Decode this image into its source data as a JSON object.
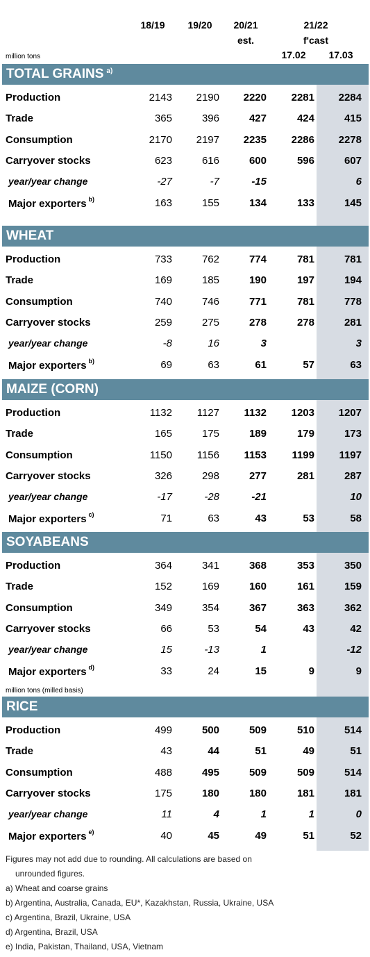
{
  "header": {
    "col1": "18/19",
    "col2": "19/20",
    "col3": "20/21",
    "col3_sub": "est.",
    "col45": "21/22",
    "col45_sub": "f'cast",
    "col4": "17.02",
    "col5": "17.03"
  },
  "unit_label": "million tons",
  "unit_label_rice": "million tons (milled basis)",
  "sections": [
    {
      "title": "TOTAL GRAINS",
      "note": "a)",
      "rows": [
        {
          "label": "Production",
          "v": [
            "2143",
            "2190",
            "2220",
            "2281",
            "2284"
          ]
        },
        {
          "label": "Trade",
          "v": [
            "365",
            "396",
            "427",
            "424",
            "415"
          ]
        },
        {
          "label": "Consumption",
          "v": [
            "2170",
            "2197",
            "2235",
            "2286",
            "2278"
          ]
        },
        {
          "label": "Carryover stocks",
          "v": [
            "623",
            "616",
            "600",
            "596",
            "607"
          ]
        },
        {
          "label": "year/year change",
          "v": [
            "-27",
            "-7",
            "-15",
            "",
            "6"
          ]
        },
        {
          "label": "Major exporters",
          "note": "b)",
          "v": [
            "163",
            "155",
            "134",
            "133",
            "145"
          ]
        }
      ]
    },
    {
      "title": "WHEAT",
      "note": "",
      "rows": [
        {
          "label": "Production",
          "v": [
            "733",
            "762",
            "774",
            "781",
            "781"
          ]
        },
        {
          "label": "Trade",
          "v": [
            "169",
            "185",
            "190",
            "197",
            "194"
          ]
        },
        {
          "label": "Consumption",
          "v": [
            "740",
            "746",
            "771",
            "781",
            "778"
          ]
        },
        {
          "label": "Carryover stocks",
          "v": [
            "259",
            "275",
            "278",
            "278",
            "281"
          ]
        },
        {
          "label": "year/year change",
          "v": [
            "-8",
            "16",
            "3",
            "",
            "3"
          ]
        },
        {
          "label": "Major exporters",
          "note": "b)",
          "v": [
            "69",
            "63",
            "61",
            "57",
            "63"
          ]
        }
      ]
    },
    {
      "title": "MAIZE (CORN)",
      "note": "",
      "rows": [
        {
          "label": "Production",
          "v": [
            "1132",
            "1127",
            "1132",
            "1203",
            "1207"
          ]
        },
        {
          "label": "Trade",
          "v": [
            "165",
            "175",
            "189",
            "179",
            "173"
          ]
        },
        {
          "label": "Consumption",
          "v": [
            "1150",
            "1156",
            "1153",
            "1199",
            "1197"
          ]
        },
        {
          "label": "Carryover stocks",
          "v": [
            "326",
            "298",
            "277",
            "281",
            "287"
          ]
        },
        {
          "label": "year/year change",
          "v": [
            "-17",
            "-28",
            "-21",
            "",
            "10"
          ]
        },
        {
          "label": "Major exporters",
          "note": "c)",
          "v": [
            "71",
            "63",
            "43",
            "53",
            "58"
          ]
        }
      ]
    },
    {
      "title": "SOYABEANS",
      "note": "",
      "rows": [
        {
          "label": "Production",
          "v": [
            "364",
            "341",
            "368",
            "353",
            "350"
          ]
        },
        {
          "label": "Trade",
          "v": [
            "152",
            "169",
            "160",
            "161",
            "159"
          ]
        },
        {
          "label": "Consumption",
          "v": [
            "349",
            "354",
            "367",
            "363",
            "362"
          ]
        },
        {
          "label": "Carryover stocks",
          "v": [
            "66",
            "53",
            "54",
            "43",
            "42"
          ]
        },
        {
          "label": "year/year change",
          "v": [
            "15",
            "-13",
            "1",
            "",
            "-12"
          ]
        },
        {
          "label": "Major exporters",
          "note": "d)",
          "v": [
            "33",
            "24",
            "15",
            "9",
            "9"
          ]
        }
      ]
    },
    {
      "title": "RICE",
      "note": "",
      "rows": [
        {
          "label": "Production",
          "v": [
            "499",
            "500",
            "509",
            "510",
            "514"
          ]
        },
        {
          "label": "Trade",
          "v": [
            "43",
            "44",
            "51",
            "49",
            "51"
          ]
        },
        {
          "label": "Consumption",
          "v": [
            "488",
            "495",
            "509",
            "509",
            "514"
          ]
        },
        {
          "label": "Carryover stocks",
          "v": [
            "175",
            "180",
            "180",
            "181",
            "181"
          ]
        },
        {
          "label": "year/year change",
          "v": [
            "11",
            "4",
            "1",
            "1",
            "0"
          ]
        },
        {
          "label": "Major exporters",
          "note": "e)",
          "v": [
            "40",
            "45",
            "49",
            "51",
            "52"
          ]
        }
      ]
    }
  ],
  "footnotes": [
    "Figures may not add due to rounding. All calculations are based on",
    "unrounded figures.",
    "a) Wheat and coarse grains",
    "b) Argentina, Australia, Canada, EU*, Kazakhstan, Russia, Ukraine, USA",
    "c) Argentina, Brazil, Ukraine, USA",
    "d) Argentina, Brazil, USA",
    "e) India, Pakistan, Thailand, USA, Vietnam"
  ],
  "colors": {
    "band": "#5f8a9e",
    "shade": "#d7dce3"
  }
}
